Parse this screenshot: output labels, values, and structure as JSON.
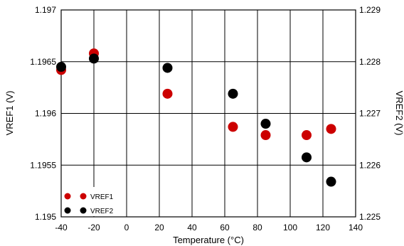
{
  "chart_data": {
    "type": "scatter",
    "xlabel": "Temperature (°C)",
    "ylabel_left": "VREF1 (V)",
    "ylabel_right": "VREF2 (V)",
    "xlim": [
      -40,
      140
    ],
    "ylim_left": [
      1.195,
      1.197
    ],
    "ylim_right": [
      1.225,
      1.229
    ],
    "x_ticks": [
      "-40",
      "-20",
      "0",
      "20",
      "40",
      "60",
      "80",
      "100",
      "120",
      "140"
    ],
    "y_ticks_left": [
      "1.197",
      "1.1965",
      "1.196",
      "1.1955",
      "1.195"
    ],
    "y_ticks_right": [
      "1.229",
      "1.228",
      "1.227",
      "1.226",
      "1.225"
    ],
    "grid": true,
    "legend_position": "bottom-left",
    "series": [
      {
        "name": "VREF1",
        "axis": "left",
        "color": "#cc0000",
        "x": [
          -40,
          -20,
          25,
          65,
          85,
          110,
          125
        ],
        "y": [
          1.19642,
          1.19658,
          1.19619,
          1.19587,
          1.19579,
          1.19579,
          1.19585
        ]
      },
      {
        "name": "VREF2",
        "axis": "right",
        "color": "#000000",
        "x": [
          -40,
          -20,
          25,
          65,
          85,
          110,
          125
        ],
        "y": [
          1.2279,
          1.22806,
          1.22788,
          1.22738,
          1.2268,
          1.22615,
          1.22568
        ]
      }
    ]
  }
}
